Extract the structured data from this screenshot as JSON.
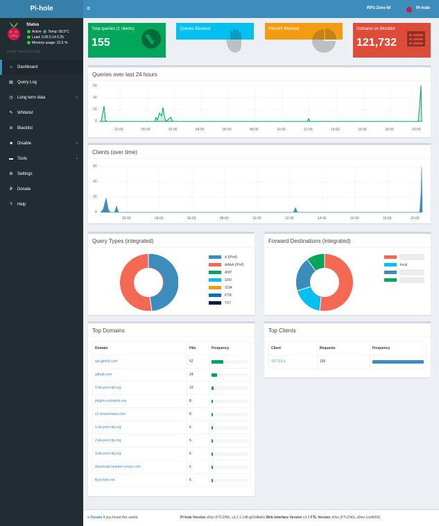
{
  "header": {
    "logo": "Pi-hole",
    "menu_icon": "≡",
    "hostname": "RP1-Zero-W",
    "user": "Pi-hole"
  },
  "sidebar": {
    "status_title": "Status",
    "status_active": "Active",
    "status_temp": "Temp: 58.5°C",
    "status_load": "Load: 0.05 0.14 0.25",
    "status_memory": "Memory usage: 22.5 %",
    "section_label": "MAIN NAVIGATION",
    "items": [
      {
        "label": "Dashboard",
        "icon": "home-icon",
        "glyph": "⌂"
      },
      {
        "label": "Query Log",
        "icon": "file-icon",
        "glyph": "▤"
      },
      {
        "label": "Long term data",
        "icon": "history-icon",
        "glyph": "◷",
        "chev": "‹"
      },
      {
        "label": "Whitelist",
        "icon": "pencil-icon",
        "glyph": "✎"
      },
      {
        "label": "Blacklist",
        "icon": "ban-icon",
        "glyph": "⊘"
      },
      {
        "label": "Disable",
        "icon": "stop-icon",
        "glyph": "■",
        "chev": "‹"
      },
      {
        "label": "Tools",
        "icon": "folder-icon",
        "glyph": "▬",
        "chev": "‹"
      },
      {
        "label": "Settings",
        "icon": "gears-icon",
        "glyph": "⚙"
      },
      {
        "label": "Donate",
        "icon": "paypal-icon",
        "glyph": "₽"
      },
      {
        "label": "Help",
        "icon": "question-icon",
        "glyph": "?"
      }
    ]
  },
  "stats": [
    {
      "title": "Total queries (1 clients)",
      "value": "155",
      "color": "#00a65a",
      "icon": "globe-icon"
    },
    {
      "title": "Queries Blocked",
      "value": "",
      "color": "#00c0ef",
      "icon": "hand-icon"
    },
    {
      "title": "Percent Blocked",
      "value": "",
      "color": "#f39c12",
      "icon": "pie-chart-icon"
    },
    {
      "title": "Domains on Blocklist",
      "value": "121,732",
      "color": "#dd4b39",
      "icon": "list-icon"
    }
  ],
  "queries_chart": {
    "title": "Queries over last 24 hours",
    "y_ticks": [
      "60",
      "40",
      "20",
      "0"
    ],
    "x_ticks": [
      "22:00",
      "00:00",
      "02:00",
      "04:00",
      "06:00",
      "08:00",
      "10:00",
      "12:00",
      "14:00",
      "16:00",
      "18:00",
      "20:00"
    ]
  },
  "clients_chart": {
    "title": "Clients (over time)",
    "y_ticks": [
      "60",
      "40",
      "20",
      "0"
    ],
    "x_ticks": [
      "02:00",
      "04:00",
      "06:00",
      "08:00",
      "10:00",
      "12:00",
      "14:00",
      "16:00",
      "18:00",
      "20:00"
    ]
  },
  "query_types": {
    "title": "Query Types (integrated)",
    "legend": [
      "A (IPv4)",
      "AAAA (IPv6)",
      "ANY",
      "SRV",
      "SOA",
      "PTR",
      "TXT"
    ],
    "colors": [
      "#3c8dbc",
      "#f56954",
      "#00a65a",
      "#00c0ef",
      "#f39c12",
      "#0073b7",
      "#001f3f"
    ]
  },
  "forward_destinations": {
    "title": "Forward Destinations (integrated)",
    "legend": [
      "",
      "local",
      "",
      ""
    ],
    "colors": [
      "#f56954",
      "#00c0ef",
      "#3c8dbc",
      "#00a65a"
    ]
  },
  "top_domains": {
    "title": "Top Domains",
    "headers": [
      "Domain",
      "Hits",
      "Frequency"
    ],
    "rows": [
      {
        "domain": "api.github.com",
        "hits": "52"
      },
      {
        "domain": "github.com",
        "hits": "24"
      },
      {
        "domain": "0.de.pool.ntp.org",
        "hits": "10"
      },
      {
        "domain": "plugins.octoprint.org",
        "hits": "8"
      },
      {
        "domain": "s3.amazonaws.com",
        "hits": "8"
      },
      {
        "domain": "1.de.pool.ntp.org",
        "hits": "6"
      },
      {
        "domain": "2.de.pool.ntp.org",
        "hits": "6"
      },
      {
        "domain": "3.de.pool.ntp.org",
        "hits": "6"
      },
      {
        "domain": "download.repetier-server.com",
        "hits": "6"
      },
      {
        "domain": "ftl.pi-hole.net",
        "hits": "6"
      }
    ]
  },
  "top_clients": {
    "title": "Top Clients",
    "headers": [
      "Client",
      "Requests",
      "Frequency"
    ],
    "rows": [
      {
        "client": "127.0.0.1",
        "requests": "155"
      }
    ]
  },
  "footer": {
    "donate": "Donate",
    "donate_suffix": " if you found this useful.",
    "pihole_label": "Pi-hole Version",
    "pihole_version": " vDev (FTLDNS, v3.2.1-148-g53d8afe) ",
    "web_label": "Web Interface Version",
    "web_version": " v3.3 ",
    "ftl_label": "FTL Version",
    "ftl_version": " vDev (FTLDNS, vDev-1ce6b56)"
  }
}
